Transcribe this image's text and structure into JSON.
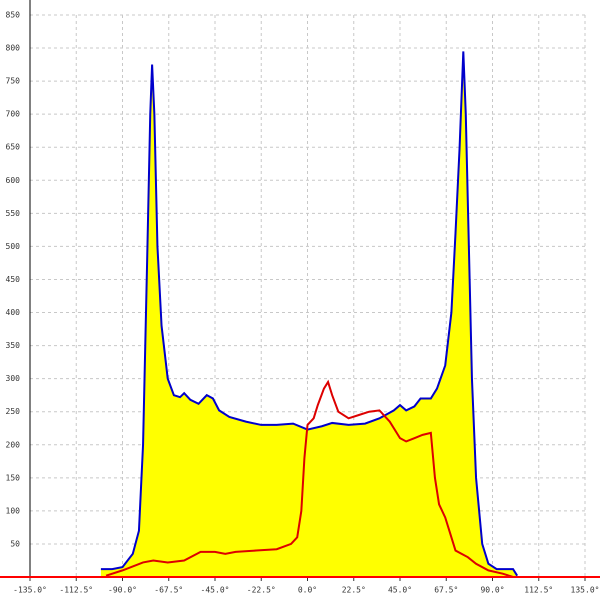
{
  "chart_data": {
    "type": "area-line",
    "xlim": [
      -135,
      135
    ],
    "xticks": [
      {
        "value": -135,
        "label": "-135.0°"
      },
      {
        "value": -112.5,
        "label": "-112.5°"
      },
      {
        "value": -90,
        "label": "-90.0°"
      },
      {
        "value": -67.5,
        "label": "-67.5°"
      },
      {
        "value": -45,
        "label": "-45.0°"
      },
      {
        "value": -22.5,
        "label": "-22.5°"
      },
      {
        "value": 0,
        "label": "0.0°"
      },
      {
        "value": 22.5,
        "label": "22.5°"
      },
      {
        "value": 45,
        "label": "45.0°"
      },
      {
        "value": 67.5,
        "label": "67.5°"
      },
      {
        "value": 90,
        "label": "90.0°"
      },
      {
        "value": 112.5,
        "label": "112.5°"
      },
      {
        "value": 135,
        "label": "135.0°"
      }
    ],
    "ylim": [
      0,
      850
    ],
    "yticks": [
      50,
      100,
      150,
      200,
      250,
      300,
      350,
      400,
      450,
      500,
      550,
      600,
      650,
      700,
      750,
      800,
      850
    ],
    "grid": true,
    "axis_color": "#ff0000",
    "series": [
      {
        "color": "#0000cc",
        "fill": "#ffff00",
        "x": [
          -100.5,
          -95,
          -90,
          -85,
          -82,
          -80,
          -78,
          -76.5,
          -75.6,
          -74.5,
          -73,
          -71,
          -68,
          -65,
          -62,
          -60,
          -57,
          -53,
          -49,
          -46,
          -43,
          -38,
          -30,
          -22.5,
          -15,
          -7,
          0,
          7,
          12,
          20,
          28,
          35,
          42,
          45,
          48,
          52,
          55,
          60,
          63,
          67,
          70,
          72,
          74,
          75.8,
          77,
          78.5,
          80,
          82,
          85,
          88,
          92,
          100,
          102
        ],
        "values": [
          12,
          12,
          15,
          35,
          70,
          200,
          480,
          700,
          775,
          700,
          500,
          380,
          300,
          275,
          272,
          278,
          268,
          262,
          275,
          270,
          252,
          242,
          235,
          230,
          230,
          232,
          223,
          228,
          233,
          230,
          232,
          240,
          252,
          260,
          252,
          258,
          270,
          270,
          285,
          320,
          400,
          520,
          650,
          795,
          700,
          500,
          300,
          150,
          50,
          20,
          12,
          12,
          2
        ]
      },
      {
        "color": "#dd0000",
        "x": [
          -98,
          -90,
          -80,
          -75,
          -68,
          -60,
          -52,
          -45,
          -40,
          -35,
          -25,
          -15,
          -8,
          -5,
          -3,
          -1.5,
          0,
          3,
          5,
          8,
          10,
          12,
          15,
          20,
          25,
          30,
          35,
          40,
          45,
          48,
          52,
          56,
          60,
          62,
          64,
          67,
          70,
          72,
          75,
          78,
          82,
          88,
          95,
          100
        ],
        "values": [
          2,
          10,
          22,
          25,
          22,
          25,
          38,
          38,
          35,
          38,
          40,
          42,
          50,
          60,
          100,
          180,
          230,
          240,
          260,
          285,
          295,
          275,
          250,
          240,
          245,
          250,
          252,
          235,
          210,
          205,
          210,
          215,
          218,
          150,
          110,
          90,
          60,
          40,
          35,
          30,
          20,
          10,
          5,
          0
        ]
      }
    ]
  }
}
